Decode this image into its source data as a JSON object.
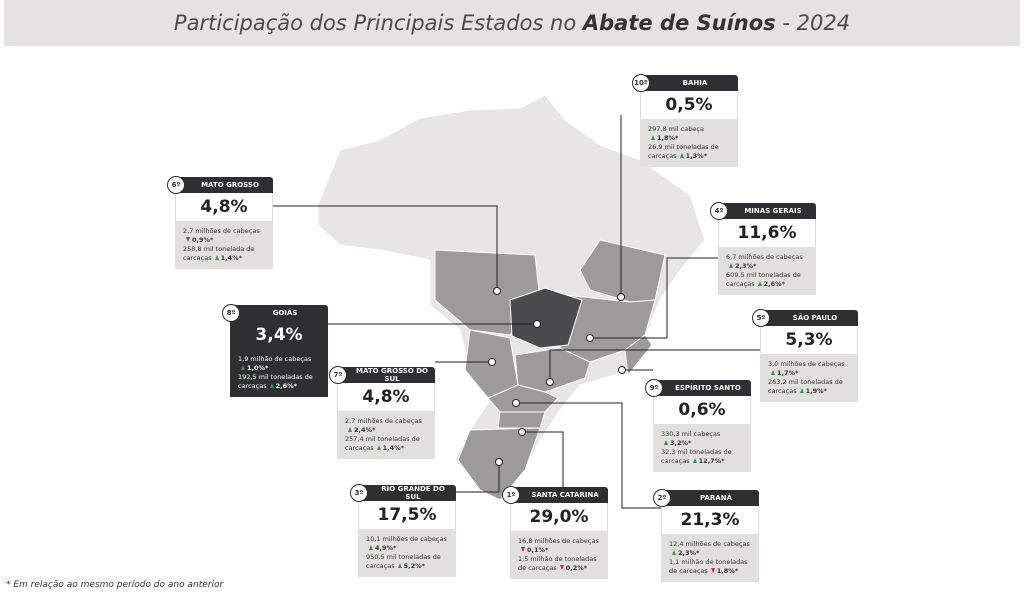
{
  "header": {
    "title_start": "Participação dos Principais Estados no ",
    "title_bold": "Abate de Suínos",
    "title_end": " - 2024"
  },
  "footnote": "* Em relação ao mesmo período do ano anterior",
  "states": [
    {
      "rank": "10º",
      "name": "BAHIA",
      "share": "0,5%",
      "heads": "297,8 mil cabeça",
      "heads_change": "1,8%*",
      "heads_dir": "up",
      "carcass": "26,9 mil toneladas de carcaças",
      "carcass_change": "1,3%*",
      "carcass_dir": "up",
      "dark": false
    },
    {
      "rank": "6º",
      "name": "MATO GROSSO",
      "share": "4,8%",
      "heads": "2,7 milhões de cabeças",
      "heads_change": "0,9%*",
      "heads_dir": "down",
      "carcass": "258,8 mil tonelada de carcaças",
      "carcass_change": "1,4%*",
      "carcass_dir": "up",
      "dark": false
    },
    {
      "rank": "4º",
      "name": "MINAS GERAIS",
      "share": "11,6%",
      "heads": "6,7 milhões de cabeças",
      "heads_change": "2,3%*",
      "heads_dir": "up",
      "carcass": "609,5 mil toneladas de carcaças",
      "carcass_change": "2,6%*",
      "carcass_dir": "up",
      "dark": false
    },
    {
      "rank": "8º",
      "name": "GOIÁS",
      "share": "3,4%",
      "heads": "1,9 milhão de cabeças",
      "heads_change": "1,0%*",
      "heads_dir": "up",
      "carcass": "192,5 mil toneladas de carcaças",
      "carcass_change": "2,6%*",
      "carcass_dir": "up",
      "dark": true
    },
    {
      "rank": "5º",
      "name": "SÃO PAULO",
      "share": "5,3%",
      "heads": "3,0 milhões de cabeças",
      "heads_change": "1,7%*",
      "heads_dir": "up",
      "carcass": "263,2 mil toneladas de carcaças",
      "carcass_change": "1,9%*",
      "carcass_dir": "up",
      "dark": false
    },
    {
      "rank": "7º",
      "name": "MATO GROSSO DO SUL",
      "share": "4,8%",
      "heads": "2,7 milhões de cabeças",
      "heads_change": "2,4%*",
      "heads_dir": "up",
      "carcass": "257,4 mil toneladas de carcaças",
      "carcass_change": "1,4%*",
      "carcass_dir": "up",
      "dark": false
    },
    {
      "rank": "9º",
      "name": "ESPÍRITO SANTO",
      "share": "0,6%",
      "heads": "330,3 mil cabeças",
      "heads_change": "3,2%*",
      "heads_dir": "up",
      "carcass": "32,3 mil toneladas de carcaças",
      "carcass_change": "12,7%*",
      "carcass_dir": "up",
      "dark": false
    },
    {
      "rank": "3º",
      "name": "RIO GRANDE DO SUL",
      "share": "17,5%",
      "heads": "10,1 milhões de cabeças",
      "heads_change": "4,9%*",
      "heads_dir": "up",
      "carcass": "950,5 mil toneladas de carcaças",
      "carcass_change": "5,2%*",
      "carcass_dir": "up",
      "dark": false
    },
    {
      "rank": "1º",
      "name": "SANTA CATARINA",
      "share": "29,0%",
      "heads": "16,8 milhões de cabeças",
      "heads_change": "0,1%*",
      "heads_dir": "down",
      "carcass": "1,5 milhão de toneladas de carcaças",
      "carcass_change": "0,2%*",
      "carcass_dir": "down",
      "dark": false
    },
    {
      "rank": "2º",
      "name": "PARANÁ",
      "share": "21,3%",
      "heads": "12,4 milhões de cabeças",
      "heads_change": "2,3%*",
      "heads_dir": "up",
      "carcass": "1,1 milhão de toneladas de carcaças",
      "carcass_change": "1,8%*",
      "carcass_dir": "down",
      "dark": false
    }
  ]
}
